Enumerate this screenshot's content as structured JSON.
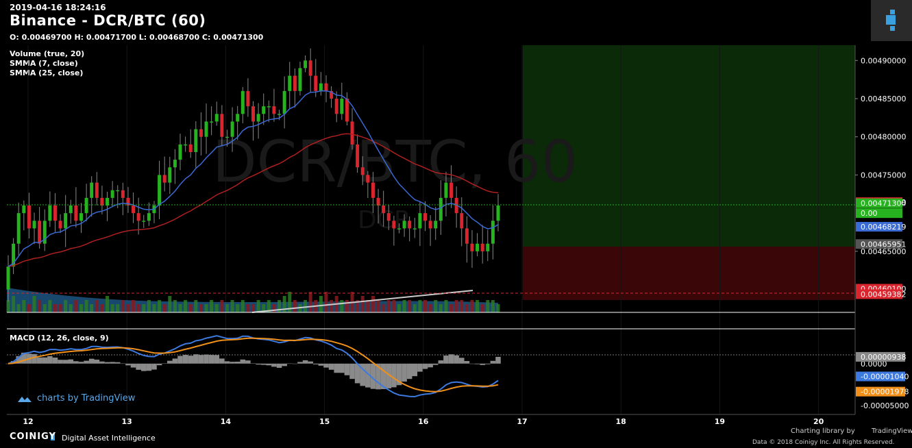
{
  "header": {
    "datetime": "2019-04-16 18:24:16",
    "title": "Binance - DCR/BTC (60)",
    "ohlc": "O: 0.00469700 H: 0.00471700 L: 0.00468700 C: 0.00471300",
    "indicators": [
      "Volume (true, 20)",
      "SMMA (7, close)",
      "SMMA (25, close)"
    ],
    "macd_label": "MACD (12, 26, close, 9)"
  },
  "watermark": {
    "symbol": "DCR/BTC, 60",
    "sub": "DCR"
  },
  "tradingview_watermark": "charts by TradingView",
  "footer": {
    "brand": "COINIGY",
    "tagline": "Digital Asset Intelligence",
    "charting_library": "Charting library by",
    "tradingview": "TradingView",
    "data_credit": "Data © 2018 Coinigy Inc. All Rights Reserved."
  },
  "colors": {
    "up": "#27b21f",
    "down": "#d9262e",
    "smma7": "#3a6ad4",
    "smma25": "#b02020",
    "macd": "#3d7ae0",
    "signal": "#f0901a",
    "hist": "#8a8a8a",
    "long_zone": "#0a2a08",
    "short_zone": "#3a0608",
    "accent": "#3aa0e0"
  },
  "chart_data": [
    {
      "type": "candlestick",
      "x_ticks": [
        "12",
        "13",
        "14",
        "15",
        "16",
        "17",
        "18",
        "19",
        "20"
      ],
      "y_ticks": [
        "0.00490000",
        "0.00485000",
        "0.00480000",
        "0.00475000",
        "0.00465000"
      ],
      "ylim": [
        0.00457,
        0.00492
      ],
      "price_labels": [
        {
          "text": "0.00471439",
          "value": 0.00471439,
          "color": "#d9262e"
        },
        {
          "text": "0.00471300",
          "value": 0.004713,
          "color": "#27b21f"
        },
        {
          "text": "0.00",
          "value": 0.0047,
          "color": "#27b21f"
        },
        {
          "text": "0.00468219",
          "value": 0.00468219,
          "color": "#3a6ad4"
        },
        {
          "text": "0.00465951",
          "value": 0.00465951,
          "color": "#555555"
        },
        {
          "text": "0.00460100",
          "value": 0.004601,
          "color": "#d9262e"
        },
        {
          "text": "0.00459382",
          "value": 0.00459382,
          "color": "#d9262e"
        }
      ],
      "position_tool": {
        "entry": 0.00465951,
        "target": 0.00492,
        "stop": 0.0046,
        "from_day": 17.0
      },
      "close": [
        0.00463,
        0.00466,
        0.0047,
        0.00471,
        0.00468,
        0.00469,
        0.00466,
        0.00469,
        0.00471,
        0.00469,
        0.00468,
        0.0047,
        0.00471,
        0.00469,
        0.0047,
        0.00472,
        0.00474,
        0.00472,
        0.00471,
        0.00472,
        0.00473,
        0.00473,
        0.00472,
        0.00471,
        0.0047,
        0.00469,
        0.00469,
        0.0047,
        0.00471,
        0.00475,
        0.00474,
        0.00476,
        0.00477,
        0.00479,
        0.00479,
        0.00478,
        0.00481,
        0.0048,
        0.00482,
        0.00482,
        0.00483,
        0.0048,
        0.0048,
        0.00482,
        0.00483,
        0.00486,
        0.00484,
        0.00482,
        0.00483,
        0.00484,
        0.00484,
        0.00483,
        0.00483,
        0.00486,
        0.00488,
        0.00486,
        0.00489,
        0.0049,
        0.00488,
        0.00486,
        0.00487,
        0.00486,
        0.00485,
        0.00483,
        0.00485,
        0.00482,
        0.00479,
        0.00476,
        0.00475,
        0.00474,
        0.00472,
        0.00471,
        0.0047,
        0.00469,
        0.00468,
        0.00468,
        0.00469,
        0.00468,
        0.00468,
        0.0047,
        0.00469,
        0.00468,
        0.00469,
        0.00472,
        0.00474,
        0.00472,
        0.0047,
        0.00468,
        0.00466,
        0.00465,
        0.00466,
        0.00465,
        0.00466,
        0.00469,
        0.00471
      ],
      "volume": [
        3,
        4,
        2,
        3,
        2,
        4,
        3,
        2,
        3,
        2,
        2,
        3,
        2,
        3,
        2,
        3,
        2,
        3,
        2,
        4,
        2,
        2,
        3,
        2,
        3,
        2,
        2,
        3,
        2,
        3,
        2,
        4,
        3,
        2,
        3,
        2,
        3,
        2,
        2,
        3,
        2,
        3,
        2,
        3,
        2,
        3,
        2,
        2,
        3,
        2,
        3,
        2,
        3,
        4,
        5,
        3,
        2,
        3,
        5,
        3,
        4,
        5,
        3,
        4,
        3,
        3,
        5,
        3,
        4,
        3,
        4,
        3,
        2,
        3,
        3,
        2,
        3,
        3,
        2,
        3,
        3,
        2,
        3,
        2,
        3,
        2,
        3,
        3,
        2,
        3,
        3,
        2,
        3,
        3,
        2
      ],
      "series": [
        {
          "name": "SMMA (7, close)"
        },
        {
          "name": "SMMA (25, close)"
        }
      ]
    },
    {
      "type": "line",
      "title": "MACD (12, 26, close, 9)",
      "y_ticks": [
        "0.0000",
        "-0.00005000"
      ],
      "value_labels": [
        {
          "text": "0.00000938",
          "color": "#8a8a8a"
        },
        {
          "text": "-0.00001040",
          "color": "#3d7ae0"
        },
        {
          "text": "-0.00001978",
          "color": "#f0901a"
        }
      ],
      "ylim": [
        -6e-05,
        4e-05
      ]
    }
  ]
}
